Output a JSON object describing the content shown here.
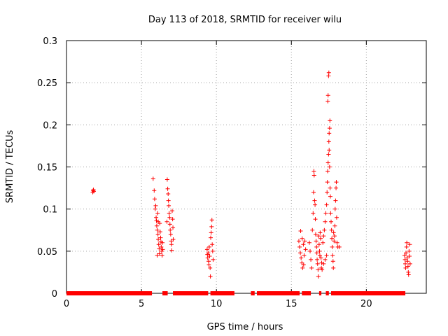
{
  "chart_data": {
    "type": "scatter",
    "title": "Day 113 of 2018, SRMTID for receiver wilu",
    "xlabel": "GPS time / hours",
    "ylabel": "SRMTID / TECUs",
    "xlim": [
      0,
      24
    ],
    "ylim": [
      0,
      0.3
    ],
    "xticks": [
      0,
      5,
      10,
      15,
      20
    ],
    "yticks": [
      0,
      0.05,
      0.1,
      0.15,
      0.2,
      0.25,
      0.3
    ],
    "grid": true,
    "marker": "+",
    "color": "#ff0000",
    "series": [
      {
        "points": [
          [
            1.75,
            0.12
          ],
          [
            1.78,
            0.122
          ],
          [
            1.8,
            0.123
          ],
          [
            1.82,
            0.121
          ],
          [
            5.78,
            0.136
          ],
          [
            5.85,
            0.122
          ],
          [
            5.88,
            0.112
          ],
          [
            5.92,
            0.1
          ],
          [
            5.95,
            0.104
          ],
          [
            5.98,
            0.09
          ],
          [
            6.0,
            0.086
          ],
          [
            6.02,
            0.08
          ],
          [
            6.05,
            0.075
          ],
          [
            6.08,
            0.095
          ],
          [
            6.1,
            0.07
          ],
          [
            6.12,
            0.064
          ],
          [
            6.15,
            0.058
          ],
          [
            6.18,
            0.053
          ],
          [
            6.2,
            0.047
          ],
          [
            6.22,
            0.083
          ],
          [
            6.25,
            0.073
          ],
          [
            6.28,
            0.066
          ],
          [
            6.3,
            0.061
          ],
          [
            6.32,
            0.055
          ],
          [
            6.35,
            0.05
          ],
          [
            6.38,
            0.045
          ],
          [
            6.4,
            0.06
          ],
          [
            6.42,
            0.052
          ],
          [
            6.05,
            0.045
          ],
          [
            6.12,
            0.085
          ],
          [
            6.72,
            0.135
          ],
          [
            6.75,
            0.124
          ],
          [
            6.78,
            0.118
          ],
          [
            6.8,
            0.11
          ],
          [
            6.82,
            0.104
          ],
          [
            6.85,
            0.095
          ],
          [
            6.88,
            0.09
          ],
          [
            6.9,
            0.082
          ],
          [
            6.92,
            0.075
          ],
          [
            6.95,
            0.07
          ],
          [
            6.98,
            0.062
          ],
          [
            7.0,
            0.058
          ],
          [
            7.02,
            0.051
          ],
          [
            7.05,
            0.098
          ],
          [
            7.08,
            0.088
          ],
          [
            7.1,
            0.078
          ],
          [
            7.12,
            0.064
          ],
          [
            6.7,
            0.085
          ],
          [
            9.38,
            0.052
          ],
          [
            9.4,
            0.046
          ],
          [
            9.42,
            0.042
          ],
          [
            9.45,
            0.048
          ],
          [
            9.48,
            0.038
          ],
          [
            9.5,
            0.034
          ],
          [
            9.52,
            0.055
          ],
          [
            9.55,
            0.044
          ],
          [
            9.58,
            0.03
          ],
          [
            9.6,
            0.02
          ],
          [
            9.62,
            0.066
          ],
          [
            9.65,
            0.072
          ],
          [
            9.68,
            0.079
          ],
          [
            9.7,
            0.087
          ],
          [
            9.72,
            0.058
          ],
          [
            9.75,
            0.05
          ],
          [
            9.78,
            0.04
          ],
          [
            15.5,
            0.062
          ],
          [
            15.55,
            0.055
          ],
          [
            15.6,
            0.048
          ],
          [
            15.65,
            0.042
          ],
          [
            15.7,
            0.036
          ],
          [
            15.75,
            0.03
          ],
          [
            15.8,
            0.058
          ],
          [
            15.85,
            0.045
          ],
          [
            15.9,
            0.062
          ],
          [
            15.95,
            0.052
          ],
          [
            15.62,
            0.074
          ],
          [
            15.72,
            0.065
          ],
          [
            15.82,
            0.034
          ],
          [
            16.2,
            0.06
          ],
          [
            16.25,
            0.05
          ],
          [
            16.3,
            0.04
          ],
          [
            16.35,
            0.03
          ],
          [
            16.4,
            0.075
          ],
          [
            16.45,
            0.095
          ],
          [
            16.48,
            0.12
          ],
          [
            16.5,
            0.145
          ],
          [
            16.52,
            0.14
          ],
          [
            16.55,
            0.11
          ],
          [
            16.58,
            0.105
          ],
          [
            16.6,
            0.088
          ],
          [
            16.62,
            0.07
          ],
          [
            16.65,
            0.062
          ],
          [
            16.68,
            0.055
          ],
          [
            16.7,
            0.048
          ],
          [
            16.72,
            0.04
          ],
          [
            16.75,
            0.035
          ],
          [
            16.78,
            0.028
          ],
          [
            16.8,
            0.02
          ],
          [
            16.82,
            0.068
          ],
          [
            16.85,
            0.058
          ],
          [
            16.88,
            0.05
          ],
          [
            16.9,
            0.045
          ],
          [
            16.92,
            0.072
          ],
          [
            16.95,
            0.065
          ],
          [
            16.98,
            0.042
          ],
          [
            17.0,
            0.03
          ],
          [
            17.02,
            0.036
          ],
          [
            17.05,
            0.028
          ],
          [
            17.1,
            0.06
          ],
          [
            17.15,
            0.068
          ],
          [
            17.2,
            0.075
          ],
          [
            17.25,
            0.085
          ],
          [
            17.3,
            0.095
          ],
          [
            17.35,
            0.105
          ],
          [
            17.38,
            0.12
          ],
          [
            17.4,
            0.132
          ],
          [
            17.42,
            0.145
          ],
          [
            17.45,
            0.155
          ],
          [
            17.48,
            0.165
          ],
          [
            17.5,
            0.18
          ],
          [
            17.52,
            0.19
          ],
          [
            17.55,
            0.196
          ],
          [
            17.57,
            0.205
          ],
          [
            17.43,
            0.228
          ],
          [
            17.45,
            0.235
          ],
          [
            17.48,
            0.258
          ],
          [
            17.5,
            0.262
          ],
          [
            17.52,
            0.17
          ],
          [
            17.55,
            0.15
          ],
          [
            17.58,
            0.125
          ],
          [
            17.6,
            0.115
          ],
          [
            17.62,
            0.095
          ],
          [
            17.65,
            0.085
          ],
          [
            17.68,
            0.075
          ],
          [
            17.7,
            0.065
          ],
          [
            17.72,
            0.055
          ],
          [
            17.75,
            0.045
          ],
          [
            17.78,
            0.038
          ],
          [
            17.8,
            0.03
          ],
          [
            17.82,
            0.072
          ],
          [
            17.85,
            0.062
          ],
          [
            17.88,
            0.068
          ],
          [
            17.9,
            0.08
          ],
          [
            17.92,
            0.1
          ],
          [
            17.95,
            0.11
          ],
          [
            17.98,
            0.125
          ],
          [
            18.0,
            0.132
          ],
          [
            18.02,
            0.09
          ],
          [
            18.05,
            0.06
          ],
          [
            18.1,
            0.055
          ],
          [
            18.2,
            0.055
          ],
          [
            17.35,
            0.045
          ],
          [
            17.25,
            0.04
          ],
          [
            17.15,
            0.035
          ],
          [
            22.55,
            0.045
          ],
          [
            22.58,
            0.04
          ],
          [
            22.6,
            0.035
          ],
          [
            22.62,
            0.03
          ],
          [
            22.65,
            0.048
          ],
          [
            22.68,
            0.055
          ],
          [
            22.7,
            0.06
          ],
          [
            22.72,
            0.042
          ],
          [
            22.75,
            0.038
          ],
          [
            22.78,
            0.032
          ],
          [
            22.8,
            0.025
          ],
          [
            22.82,
            0.022
          ],
          [
            22.85,
            0.05
          ],
          [
            22.88,
            0.044
          ],
          [
            22.9,
            0.058
          ],
          [
            22.92,
            0.035
          ]
        ],
        "baseline_segments": [
          [
            0.0,
            5.7
          ],
          [
            6.4,
            6.75
          ],
          [
            7.1,
            9.45
          ],
          [
            9.6,
            11.2
          ],
          [
            12.3,
            12.55
          ],
          [
            12.7,
            15.55
          ],
          [
            15.7,
            16.3
          ],
          [
            16.85,
            17.0
          ],
          [
            17.3,
            17.5
          ],
          [
            17.65,
            22.6
          ]
        ]
      }
    ]
  }
}
